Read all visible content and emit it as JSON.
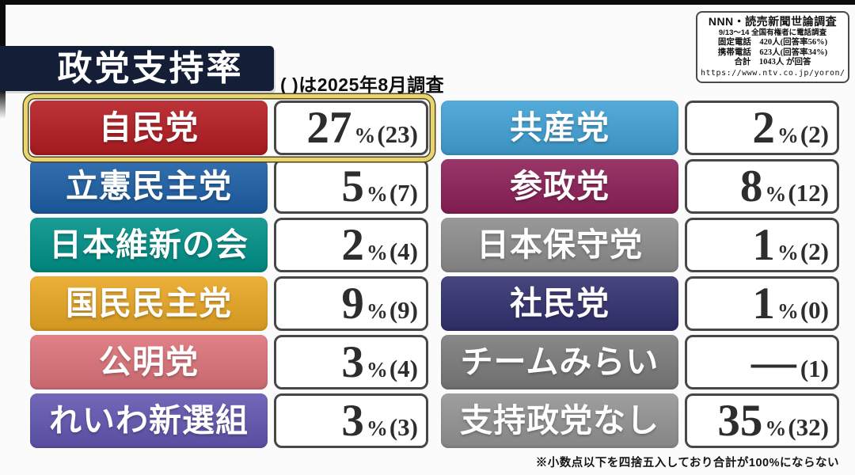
{
  "survey_box": {
    "title": "NNN・読売新聞世論調査",
    "line1": "9/13～14 全国有権者に電話調査",
    "line2": "固定電話　420人(回答率56%)",
    "line3": "携帯電話　623人(回答率34%)",
    "line4": "合計　1043人 が回答",
    "url": "https://www.ntv.co.jp/yoron/"
  },
  "header": {
    "title": "政党支持率",
    "subtitle": "( )は2025年8月調査"
  },
  "footnote": "※小数点以下を四捨五入しており合計が100%にならない",
  "chart_data": {
    "type": "table",
    "title": "政党支持率",
    "subtitle": "( )は2025年8月調査",
    "note": "※小数点以下を四捨五入しており合計が100%にならない",
    "unit": "%",
    "previous_label": "2025年8月調査",
    "parties": [
      {
        "name": "自民党",
        "value": "27",
        "unit": "%",
        "previous_display": "(23)",
        "value_percent": 27,
        "previous_percent": 23,
        "color": "#b41d22",
        "highlighted": true
      },
      {
        "name": "立憲民主党",
        "value": "5",
        "unit": "%",
        "previous_display": "(7)",
        "value_percent": 5,
        "previous_percent": 7,
        "color": "#1d5fa6",
        "highlighted": false
      },
      {
        "name": "日本維新の会",
        "value": "2",
        "unit": "%",
        "previous_display": "(4)",
        "value_percent": 2,
        "previous_percent": 4,
        "color": "#009188",
        "highlighted": false
      },
      {
        "name": "国民民主党",
        "value": "9",
        "unit": "%",
        "previous_display": "(9)",
        "value_percent": 9,
        "previous_percent": 9,
        "color": "#e9a724",
        "highlighted": false
      },
      {
        "name": "公明党",
        "value": "3",
        "unit": "%",
        "previous_display": "(4)",
        "value_percent": 3,
        "previous_percent": 4,
        "color": "#dd737b",
        "highlighted": false
      },
      {
        "name": "れいわ新選組",
        "value": "3",
        "unit": "%",
        "previous_display": "(3)",
        "value_percent": 3,
        "previous_percent": 3,
        "color": "#6257b2",
        "highlighted": false
      },
      {
        "name": "共産党",
        "value": "2",
        "unit": "%",
        "previous_display": "(2)",
        "value_percent": 2,
        "previous_percent": 2,
        "color": "#41a1d5",
        "highlighted": false
      },
      {
        "name": "参政党",
        "value": "8",
        "unit": "%",
        "previous_display": "(12)",
        "value_percent": 8,
        "previous_percent": 12,
        "color": "#8d2058",
        "highlighted": false
      },
      {
        "name": "日本保守党",
        "value": "1",
        "unit": "%",
        "previous_display": "(2)",
        "value_percent": 1,
        "previous_percent": 2,
        "color": "#8d8d8d",
        "highlighted": false
      },
      {
        "name": "社民党",
        "value": "1",
        "unit": "%",
        "previous_display": "(0)",
        "value_percent": 1,
        "previous_percent": 0,
        "color": "#32316f",
        "highlighted": false
      },
      {
        "name": "チームみらい",
        "value": "—",
        "unit": "",
        "previous_display": "(1)",
        "value_percent": null,
        "previous_percent": 1,
        "color": "#7b7b7b",
        "highlighted": false
      },
      {
        "name": "支持政党なし",
        "value": "35",
        "unit": "%",
        "previous_display": "(32)",
        "value_percent": 35,
        "previous_percent": 32,
        "color": "#949494",
        "highlighted": false
      }
    ]
  }
}
